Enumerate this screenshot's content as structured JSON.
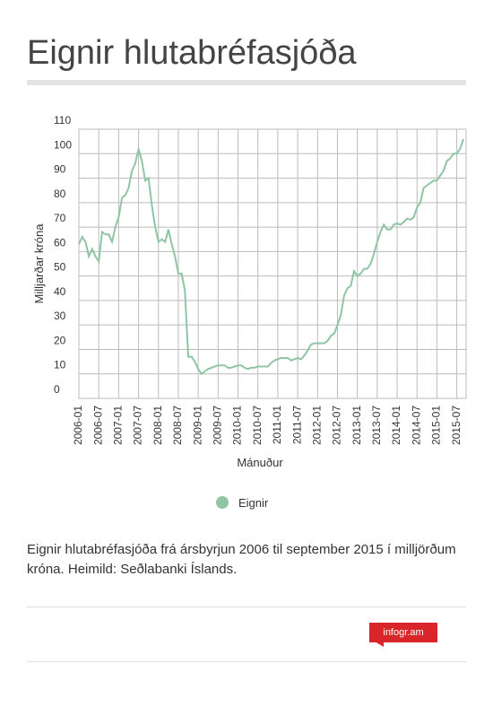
{
  "title": "Eignir hlutabréfasjóða",
  "chart_data": {
    "type": "line",
    "y_label": "Milljarðar króna",
    "x_label": "Mánuður",
    "categories": [
      "2006-01",
      null,
      null,
      null,
      null,
      null,
      "2006-07",
      null,
      null,
      null,
      null,
      null,
      "2007-01",
      null,
      null,
      null,
      null,
      null,
      "2007-07",
      null,
      null,
      null,
      null,
      null,
      "2008-01",
      null,
      null,
      null,
      null,
      null,
      "2008-07",
      null,
      null,
      null,
      null,
      null,
      "2009-01",
      null,
      null,
      null,
      null,
      null,
      "2009-07",
      null,
      null,
      null,
      null,
      null,
      "2010-01",
      null,
      null,
      null,
      null,
      null,
      "2010-07",
      null,
      null,
      null,
      null,
      null,
      "2011-01",
      null,
      null,
      null,
      null,
      null,
      "2011-07",
      null,
      null,
      null,
      null,
      null,
      "2012-01",
      null,
      null,
      null,
      null,
      null,
      "2012-07",
      null,
      null,
      null,
      null,
      null,
      "2013-01",
      null,
      null,
      null,
      null,
      null,
      "2013-07",
      null,
      null,
      null,
      null,
      null,
      "2014-01",
      null,
      null,
      null,
      null,
      null,
      "2014-07",
      null,
      null,
      null,
      null,
      null,
      "2015-01",
      null,
      null,
      null,
      null,
      null,
      "2015-07",
      null,
      null
    ],
    "series": [
      {
        "name": "Eignir",
        "color": "#8fc5a3",
        "values": [
          63,
          66,
          64,
          58,
          61,
          58,
          56,
          68,
          67,
          67,
          64,
          70,
          74,
          82,
          83,
          86,
          93,
          96,
          102,
          97,
          89,
          90,
          79,
          70,
          64,
          65,
          64,
          69,
          63,
          58,
          51,
          51,
          44,
          17,
          17,
          15,
          12,
          10,
          11,
          12,
          12.5,
          13,
          13.5,
          13.5,
          13.5,
          12.5,
          12.5,
          13,
          13.5,
          13.5,
          12.5,
          12,
          12.5,
          12.5,
          13,
          13,
          13,
          13,
          14.5,
          15.5,
          16,
          16.5,
          16.5,
          16.5,
          15.5,
          16,
          16.5,
          16,
          17.5,
          19.5,
          22,
          22.5,
          22.5,
          22.5,
          22.5,
          23.5,
          25.5,
          26.5,
          30,
          34,
          42,
          45,
          46,
          52,
          50,
          51,
          53,
          53,
          55,
          59,
          64,
          68,
          71,
          69,
          69,
          71,
          71.5,
          71,
          72,
          73.5,
          73,
          74,
          78,
          80,
          86,
          87,
          88,
          89,
          89,
          91,
          93,
          97,
          98,
          100,
          100,
          102,
          106
        ]
      }
    ],
    "ylim": [
      0,
      110
    ],
    "yticks": [
      0,
      10,
      20,
      30,
      40,
      50,
      60,
      70,
      80,
      90,
      100,
      110
    ],
    "grid": true,
    "legend": "bottom"
  },
  "description": "Eignir hlutabréfasjóða frá ársbyrjun 2006 til september 2015 í milljörðum króna. Heimild: Seðlabanki Íslands.",
  "logo": "infogr.am"
}
